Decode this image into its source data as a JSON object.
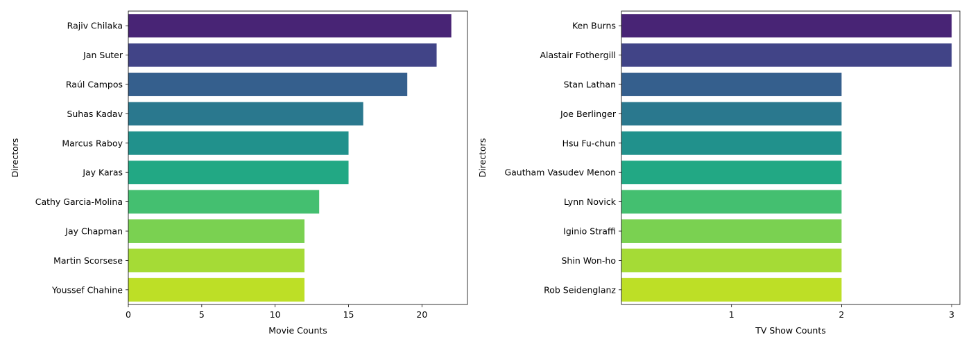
{
  "chart_data": [
    {
      "type": "bar",
      "orientation": "horizontal",
      "categories": [
        "Rajiv Chilaka",
        "Jan Suter",
        "Raúl Campos",
        "Suhas Kadav",
        "Marcus Raboy",
        "Jay Karas",
        "Cathy Garcia-Molina",
        "Jay Chapman",
        "Martin Scorsese",
        "Youssef Chahine"
      ],
      "values": [
        22,
        21,
        19,
        16,
        15,
        15,
        13,
        12,
        12,
        12
      ],
      "colors": [
        "#482475",
        "#414487",
        "#355f8d",
        "#2a788e",
        "#21918c",
        "#22a884",
        "#44bf70",
        "#7ad151",
        "#a5db36",
        "#bddf26"
      ],
      "xlabel": "Movie Counts",
      "ylabel": "Directors",
      "xticks": [
        0,
        5,
        10,
        15,
        20
      ],
      "xlim": [
        0,
        23.1
      ],
      "grid": false
    },
    {
      "type": "bar",
      "orientation": "horizontal",
      "categories": [
        "Ken Burns",
        "Alastair Fothergill",
        "Stan Lathan",
        "Joe Berlinger",
        "Hsu Fu-chun",
        "Gautham Vasudev Menon",
        "Lynn Novick",
        "Iginio Straffi",
        "Shin Won-ho",
        "Rob Seidenglanz"
      ],
      "values": [
        3,
        3,
        2,
        2,
        2,
        2,
        2,
        2,
        2,
        2
      ],
      "colors": [
        "#482475",
        "#414487",
        "#355f8d",
        "#2a788e",
        "#21918c",
        "#22a884",
        "#44bf70",
        "#7ad151",
        "#a5db36",
        "#bddf26"
      ],
      "xlabel": "TV Show Counts",
      "ylabel": "Directors",
      "xticks": [
        1,
        2,
        3
      ],
      "xlim": [
        0,
        3.075
      ],
      "grid": false
    }
  ]
}
